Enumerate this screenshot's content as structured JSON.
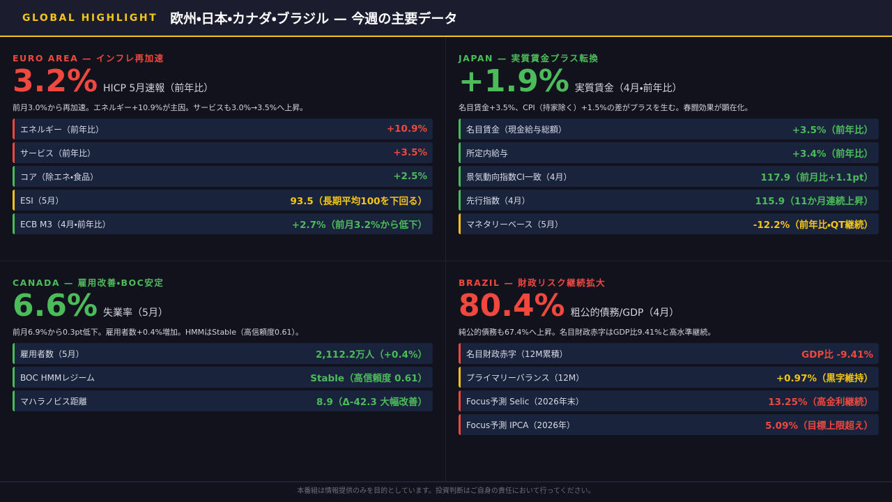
{
  "header": {
    "tag": "GLOBAL HIGHLIGHT",
    "title": "欧州・日本・カナダ・ブラジル — 今週の主要データ"
  },
  "panels": [
    {
      "label": "EURO AREA — インフレ再加速",
      "color": "#f0483e",
      "big": "3.2%",
      "big_label": "HICP 5月速報（前年比）",
      "note": "前月3.0%から再加速。エネルギー+10.9%が主因。サービスも3.0%→3.5%へ上昇。",
      "rows": [
        {
          "name": "エネルギー（前年比）",
          "value": "+10.9%",
          "color": "#f0483e"
        },
        {
          "name": "サービス（前年比）",
          "value": "+3.5%",
          "color": "#f0483e"
        },
        {
          "name": "コア（除エネ・食品）",
          "value": "+2.5%",
          "color": "#4cbb5a"
        },
        {
          "name": "ESI（5月）",
          "value": "93.5（長期平均100を下回る）",
          "color": "#f5c518"
        },
        {
          "name": "ECB M3（4月・前年比）",
          "value": "+2.7%（前月3.2%から低下）",
          "color": "#4cbb5a"
        }
      ]
    },
    {
      "label": "JAPAN — 実質賃金プラス転換",
      "color": "#4cbb5a",
      "big": "+1.9%",
      "big_label": "実質賃金（4月・前年比）",
      "note": "名目賃金+3.5%、CPI（持家除く）+1.5%の差がプラスを生む。春闘効果が顕在化。",
      "rows": [
        {
          "name": "名目賃金（現金給与総額）",
          "value": "+3.5%（前年比）",
          "color": "#4cbb5a"
        },
        {
          "name": "所定内給与",
          "value": "+3.4%（前年比）",
          "color": "#4cbb5a"
        },
        {
          "name": "景気動向指数CI一致（4月）",
          "value": "117.9（前月比+1.1pt）",
          "color": "#4cbb5a"
        },
        {
          "name": "先行指数（4月）",
          "value": "115.9（11か月連続上昇）",
          "color": "#4cbb5a"
        },
        {
          "name": "マネタリーベース（5月）",
          "value": "-12.2%（前年比・QT継続）",
          "color": "#f5c518"
        }
      ]
    },
    {
      "label": "CANADA — 雇用改善・BOC安定",
      "color": "#4cbb5a",
      "big": "6.6%",
      "big_label": "失業率（5月）",
      "note": "前月6.9%から0.3pt低下。雇用者数+0.4%増加。HMMはStable（高信頼度0.61）。",
      "rows": [
        {
          "name": "雇用者数（5月）",
          "value": "2,112.2万人（+0.4%）",
          "color": "#4cbb5a"
        },
        {
          "name": "BOC HMMレジーム",
          "value": "Stable（高信頼度 0.61）",
          "color": "#4cbb5a"
        },
        {
          "name": "マハラノビス距離",
          "value": "8.9（Δ-42.3 大幅改善）",
          "color": "#4cbb5a"
        }
      ]
    },
    {
      "label": "BRAZIL — 財政リスク継続拡大",
      "color": "#f0483e",
      "big": "80.4%",
      "big_label": "粗公的債務/GDP（4月）",
      "note": "純公的債務も67.4%へ上昇。名目財政赤字はGDP比9.41%と高水準継続。",
      "rows": [
        {
          "name": "名目財政赤字（12M累積）",
          "value": "GDP比 -9.41%",
          "color": "#f0483e"
        },
        {
          "name": "プライマリーバランス（12M）",
          "value": "+0.97%（黒字維持）",
          "color": "#f5c518"
        },
        {
          "name": "Focus予測 Selic（2026年末）",
          "value": "13.25%（高金利継続）",
          "color": "#f0483e"
        },
        {
          "name": "Focus予測 IPCA（2026年）",
          "value": "5.09%（目標上限超え）",
          "color": "#f0483e"
        }
      ]
    }
  ],
  "footer": "本番組は情報提供のみを目的としています。投資判断はご自身の責任において行ってください。"
}
